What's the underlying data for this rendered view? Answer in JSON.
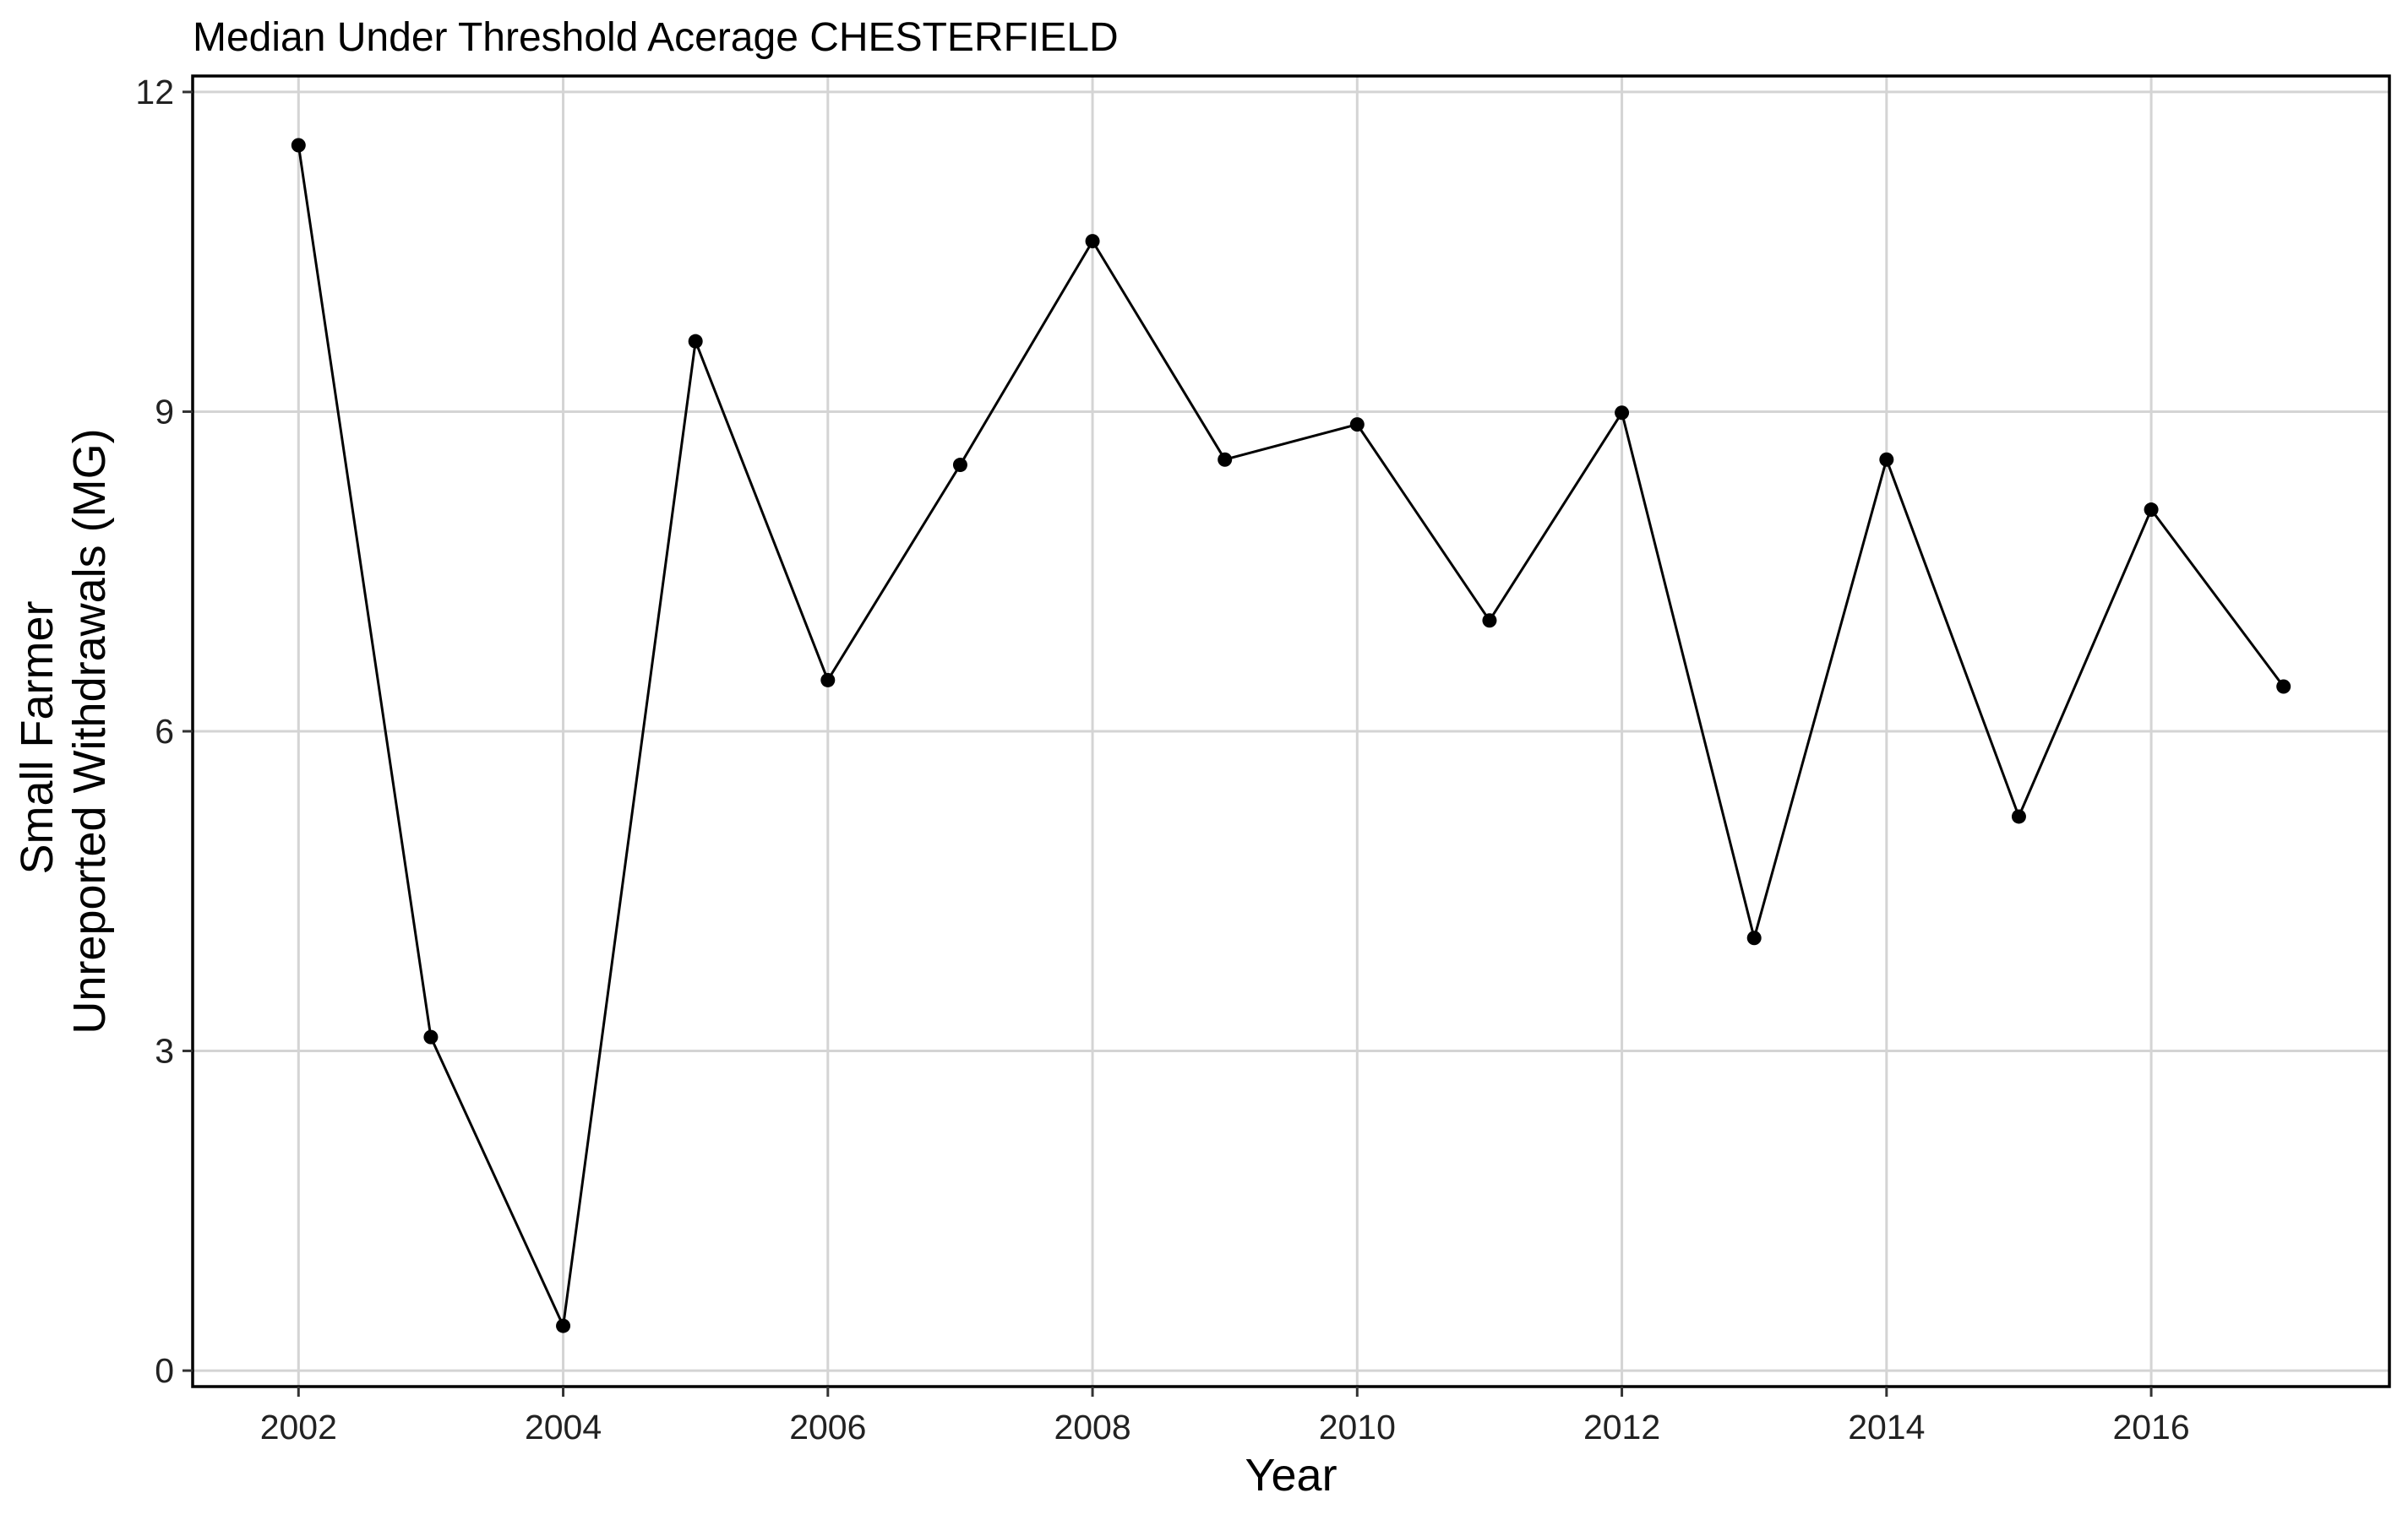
{
  "chart_data": {
    "type": "line",
    "title": "Median Under Threshold Acerage CHESTERFIELD",
    "xlabel": "Year",
    "ylabel_lines": [
      "Small Farmer",
      "Unreported Withdrawals (MG)"
    ],
    "xlim": [
      2001.2,
      2017.8
    ],
    "ylim": [
      -0.15,
      12.15
    ],
    "x_ticks": [
      2002,
      2004,
      2006,
      2008,
      2010,
      2012,
      2014,
      2016
    ],
    "x_tick_labels": [
      "2002",
      "2004",
      "2006",
      "2008",
      "2010",
      "2012",
      "2014",
      "2016"
    ],
    "y_ticks": [
      0,
      3,
      6,
      9,
      12
    ],
    "y_tick_labels": [
      "0",
      "3",
      "6",
      "9",
      "12"
    ],
    "grid": true,
    "legend": "none",
    "series": [
      {
        "x": [
          2002,
          2003,
          2004,
          2005,
          2006,
          2007,
          2008,
          2009,
          2010,
          2011,
          2012,
          2013,
          2014,
          2015,
          2016,
          2017
        ],
        "y": [
          11.5,
          3.13,
          0.42,
          9.66,
          6.48,
          8.5,
          10.6,
          8.55,
          8.88,
          7.04,
          8.99,
          4.06,
          8.55,
          5.2,
          8.08,
          6.42
        ],
        "color": "#000000"
      }
    ]
  }
}
